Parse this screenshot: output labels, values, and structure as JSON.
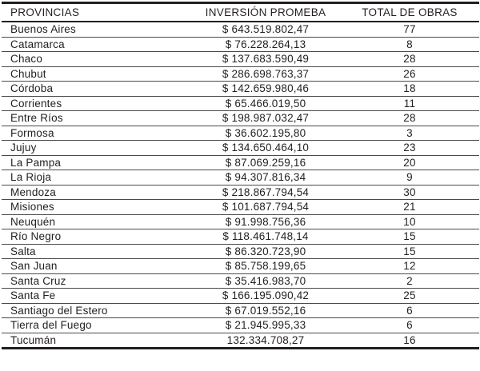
{
  "colors": {
    "text": "#231f20",
    "thick_border": "#231f20",
    "row_separator": "#4a4a4a",
    "background": "#ffffff"
  },
  "table": {
    "columns": [
      "PROVINCIAS",
      "INVERSIÓN PROMEBA",
      "TOTAL DE OBRAS"
    ],
    "rows": [
      {
        "provincia": "Buenos Aires",
        "inversion": "$ 643.519.802,47",
        "obras": "77"
      },
      {
        "provincia": "Catamarca",
        "inversion": "$ 76.228.264,13",
        "obras": "8"
      },
      {
        "provincia": "Chaco",
        "inversion": "$ 137.683.590,49",
        "obras": "28"
      },
      {
        "provincia": "Chubut",
        "inversion": "$ 286.698.763,37",
        "obras": "26"
      },
      {
        "provincia": "Córdoba",
        "inversion": "$ 142.659.980,46",
        "obras": "18"
      },
      {
        "provincia": "Corrientes",
        "inversion": "$ 65.466.019,50",
        "obras": "11"
      },
      {
        "provincia": "Entre Ríos",
        "inversion": "$ 198.987.032,47",
        "obras": "28"
      },
      {
        "provincia": "Formosa",
        "inversion": "$ 36.602.195,80",
        "obras": "3"
      },
      {
        "provincia": "Jujuy",
        "inversion": "$ 134.650.464,10",
        "obras": "23"
      },
      {
        "provincia": "La Pampa",
        "inversion": "$ 87.069.259,16",
        "obras": "20"
      },
      {
        "provincia": "La Rioja",
        "inversion": "$ 94.307.816,34",
        "obras": "9"
      },
      {
        "provincia": "Mendoza",
        "inversion": "$ 218.867.794,54",
        "obras": "30"
      },
      {
        "provincia": "Misiones",
        "inversion": "$ 101.687.794,54",
        "obras": "21"
      },
      {
        "provincia": "Neuquén",
        "inversion": "$ 91.998.756,36",
        "obras": "10"
      },
      {
        "provincia": "Río Negro",
        "inversion": "$ 118.461.748,14",
        "obras": "15"
      },
      {
        "provincia": "Salta",
        "inversion": "$ 86.320.723,90",
        "obras": "15"
      },
      {
        "provincia": "San Juan",
        "inversion": "$ 85.758.199,65",
        "obras": "12"
      },
      {
        "provincia": "Santa Cruz",
        "inversion": "$ 35.416.983,70",
        "obras": "2"
      },
      {
        "provincia": "Santa Fe",
        "inversion": "$ 166.195.090,42",
        "obras": "25"
      },
      {
        "provincia": "Santiago del Estero",
        "inversion": "$ 67.019.552,16",
        "obras": "6"
      },
      {
        "provincia": "Tierra del Fuego",
        "inversion": "$ 21.945.995,33",
        "obras": "6"
      },
      {
        "provincia": "Tucumán",
        "inversion": "132.334.708,27",
        "obras": "16"
      }
    ]
  }
}
